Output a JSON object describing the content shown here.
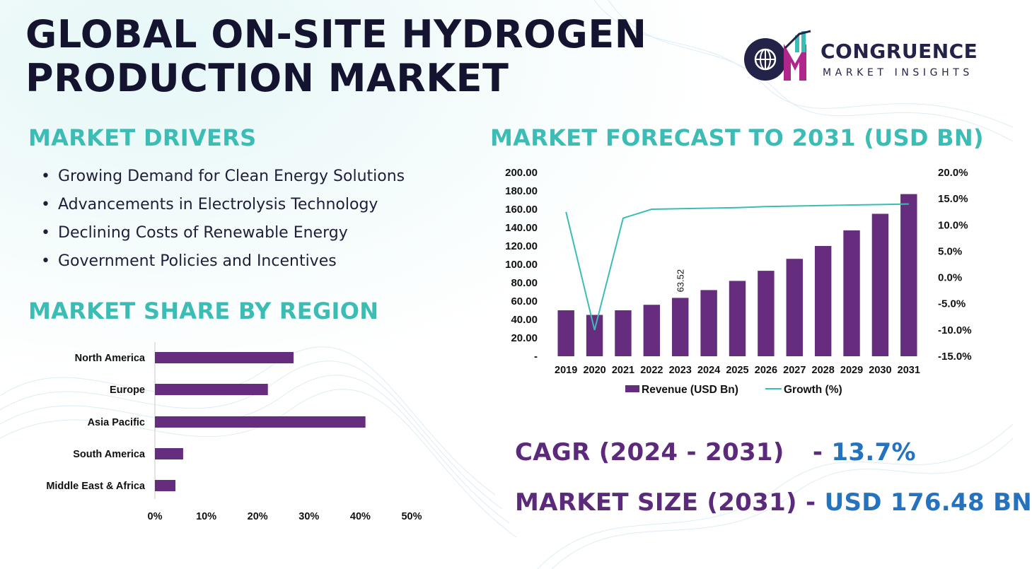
{
  "title_line1": "GLOBAL ON-SITE HYDROGEN",
  "title_line2": "PRODUCTION MARKET",
  "logo": {
    "name": "CONGRUENCE",
    "subtitle": "MARKET INSIGHTS",
    "mark_letters": "CM"
  },
  "drivers": {
    "heading": "MARKET DRIVERS",
    "items": [
      "Growing Demand for Clean Energy Solutions",
      "Advancements in Electrolysis Technology",
      "Declining Costs of Renewable  Energy",
      "Government Policies and Incentives"
    ]
  },
  "forecast": {
    "heading": "MARKET FORECAST TO 2031 (USD BN)"
  },
  "region": {
    "heading": "MARKET SHARE BY REGION"
  },
  "kpis": {
    "cagr_label": "CAGR (2024 - 2031)",
    "cagr_dash": "- ",
    "cagr_value": "13.7%",
    "size_label": "MARKET SIZE (2031)",
    "size_dash": " - ",
    "size_value": "USD 176.48 BN"
  },
  "colors": {
    "bar": "#662d7e",
    "line": "#3bbdb6",
    "accent_purple": "#5c2a7a",
    "accent_blue": "#2573bf"
  },
  "chart_data": [
    {
      "type": "bar",
      "subtype": "combo-bar-line",
      "categories": [
        "2019",
        "2020",
        "2021",
        "2022",
        "2023",
        "2024",
        "2025",
        "2026",
        "2027",
        "2028",
        "2029",
        "2030",
        "2031"
      ],
      "series": [
        {
          "name": "Revenue (USD Bn)",
          "axis": "left",
          "kind": "bar",
          "values": [
            50,
            45,
            50,
            56,
            63.52,
            72,
            82,
            93,
            106,
            120,
            137,
            155,
            176.48
          ]
        },
        {
          "name": "Growth (%)",
          "axis": "right",
          "kind": "line",
          "values": [
            12.5,
            -10,
            11.3,
            13,
            13.1,
            13.2,
            13.3,
            13.5,
            13.6,
            13.7,
            13.8,
            13.9,
            14
          ]
        }
      ],
      "data_labels": [
        {
          "category": "2023",
          "text": "63.52"
        }
      ],
      "ylim_left": [
        0,
        200
      ],
      "ylim_right": [
        -15,
        20
      ],
      "y_ticks_left": [
        "-",
        "20.00",
        "40.00",
        "60.00",
        "80.00",
        "100.00",
        "120.00",
        "140.00",
        "160.00",
        "180.00",
        "200.00"
      ],
      "y_ticks_right": [
        "-15.0%",
        "-10.0%",
        "-5.0%",
        "0.0%",
        "5.0%",
        "10.0%",
        "15.0%",
        "20.0%"
      ],
      "legend_position": "bottom",
      "grid": false
    },
    {
      "type": "bar",
      "orientation": "horizontal",
      "categories": [
        "North America",
        "Europe",
        "Asia Pacific",
        "South America",
        "Middle East & Africa"
      ],
      "values": [
        27,
        22,
        41,
        5.5,
        4
      ],
      "xlim": [
        0,
        50
      ],
      "x_ticks": [
        "0%",
        "10%",
        "20%",
        "30%",
        "40%",
        "50%"
      ],
      "grid": false
    }
  ]
}
